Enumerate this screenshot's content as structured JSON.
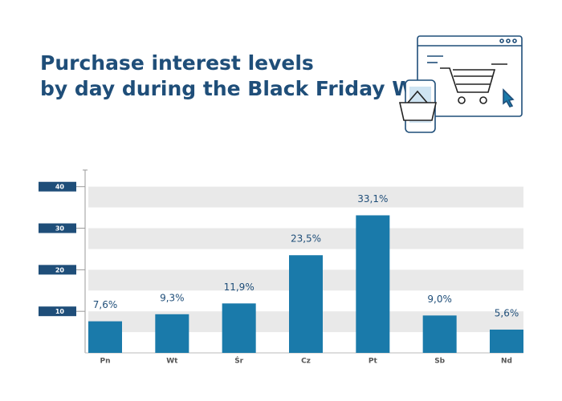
{
  "chart_data": {
    "type": "bar",
    "title": [
      "Purchase interest levels",
      "by day during the Black Friday Week"
    ],
    "categories": [
      "Pn",
      "Wt",
      "Śr",
      "Cz",
      "Pt",
      "Sb",
      "Nd"
    ],
    "values": [
      7.6,
      9.3,
      11.9,
      23.5,
      33.1,
      9.0,
      5.6
    ],
    "value_labels": [
      "7,6%",
      "9,3%",
      "11,9%",
      "23,5%",
      "33,1%",
      "9,0%",
      "5,6%"
    ],
    "color": "#1a7aaa",
    "ylim": [
      0,
      44
    ],
    "yticks": [
      10,
      20,
      30,
      40
    ],
    "grid": true
  }
}
